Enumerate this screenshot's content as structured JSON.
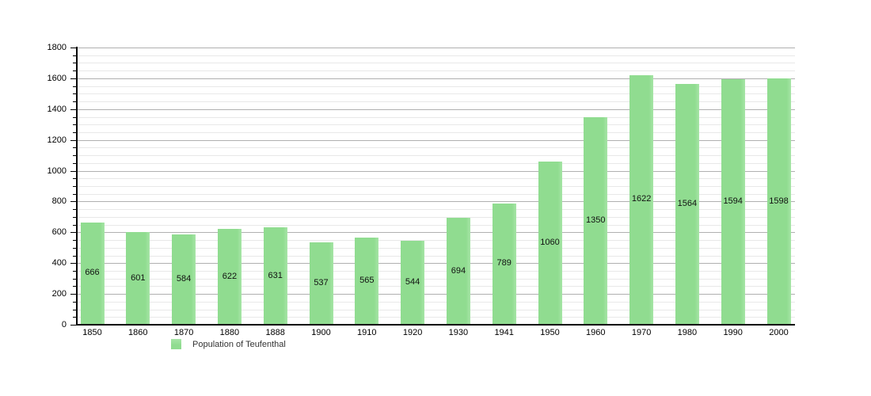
{
  "chart_data": {
    "type": "bar",
    "title": "",
    "legend": "Population of Teufenthal",
    "categories": [
      "1850",
      "1860",
      "1870",
      "1880",
      "1888",
      "1900",
      "1910",
      "1920",
      "1930",
      "1941",
      "1950",
      "1960",
      "1970",
      "1980",
      "1990",
      "2000"
    ],
    "values": [
      666,
      601,
      584,
      622,
      631,
      537,
      565,
      544,
      694,
      789,
      1060,
      1350,
      1622,
      1564,
      1594,
      1598
    ],
    "xlabel": "",
    "ylabel": "",
    "ylim": [
      0,
      1800
    ],
    "y_major_step": 200,
    "y_minor_step": 50,
    "grid": true,
    "value_labels": "inside-center",
    "legend_position": "bottom-left",
    "colors": {
      "bar": "#90dc90",
      "bar_edge_highlight": "#a6e5a6",
      "major_grid": "#b0b0b0",
      "minor_grid": "#e8e8e8",
      "axis": "#000000",
      "text": "#000000",
      "background": "#ffffff"
    }
  }
}
